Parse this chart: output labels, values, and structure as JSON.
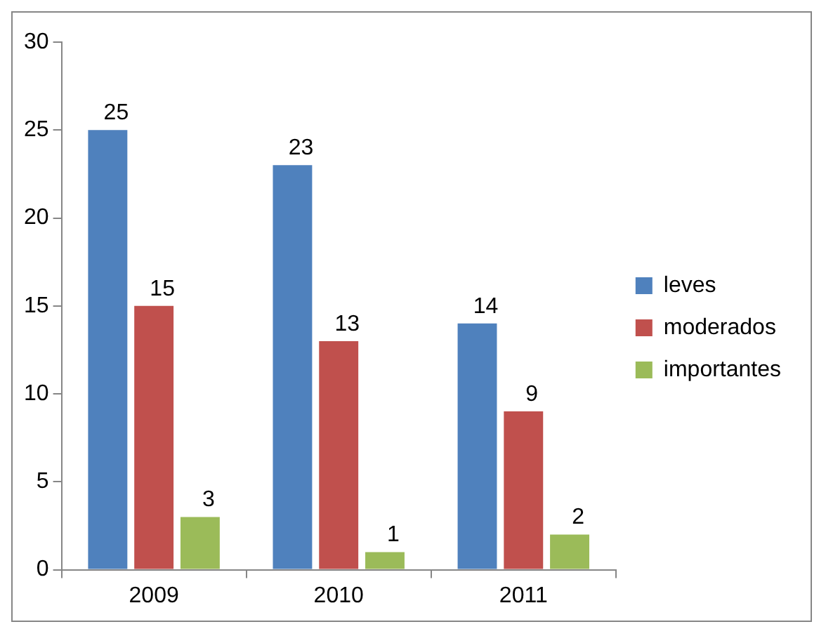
{
  "chart_data": {
    "type": "bar",
    "categories": [
      "2009",
      "2010",
      "2011"
    ],
    "series": [
      {
        "name": "leves",
        "color": "#4f81bd",
        "values": [
          25,
          23,
          14
        ]
      },
      {
        "name": "moderados",
        "color": "#c0504d",
        "values": [
          15,
          13,
          9
        ]
      },
      {
        "name": "importantes",
        "color": "#9bbb59",
        "values": [
          3,
          1,
          2
        ]
      }
    ],
    "ylim": [
      0,
      30
    ],
    "yticks": [
      0,
      5,
      10,
      15,
      20,
      25,
      30
    ],
    "grid": false,
    "legend": "right",
    "data_labels": true
  }
}
